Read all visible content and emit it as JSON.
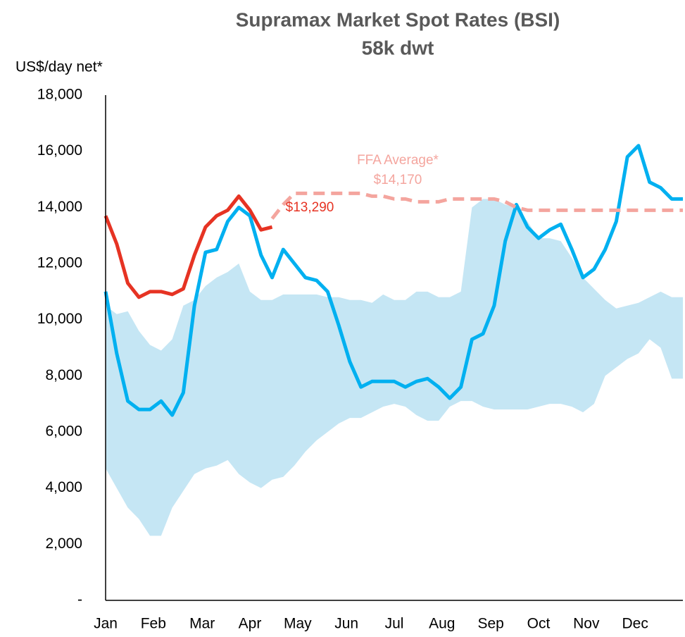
{
  "chart_data": {
    "type": "line",
    "title": "Supramax Market Spot Rates (BSI)",
    "subtitle": "58k dwt",
    "y_label": "US$/day net*",
    "annotations": [
      {
        "text": "FFA Average*",
        "color": "#f4a59e"
      },
      {
        "text": "$14,170",
        "color": "#f4a59e"
      },
      {
        "text": "$13,290",
        "color": "#e63323"
      }
    ],
    "x": [
      0,
      1,
      2,
      3,
      4,
      5,
      6,
      7,
      8,
      9,
      10,
      11,
      12,
      13,
      14,
      15,
      16,
      17,
      18,
      19,
      20,
      21,
      22,
      23,
      24,
      25,
      26,
      27,
      28,
      29,
      30,
      31,
      32,
      33,
      34,
      35,
      36,
      37,
      38,
      39,
      40,
      41,
      42,
      43,
      44,
      45,
      46,
      47,
      48,
      49,
      50,
      51,
      52
    ],
    "xlim": [
      0,
      52
    ],
    "xticks": [
      {
        "value": 0,
        "label": "Jan"
      },
      {
        "value": 4.3,
        "label": "Feb"
      },
      {
        "value": 8.7,
        "label": "Mar"
      },
      {
        "value": 13,
        "label": "Apr"
      },
      {
        "value": 17.3,
        "label": "May"
      },
      {
        "value": 21.7,
        "label": "Jun"
      },
      {
        "value": 26,
        "label": "Jul"
      },
      {
        "value": 30.3,
        "label": "Aug"
      },
      {
        "value": 34.7,
        "label": "Sep"
      },
      {
        "value": 39,
        "label": "Oct"
      },
      {
        "value": 43.3,
        "label": "Nov"
      },
      {
        "value": 47.7,
        "label": "Dec"
      }
    ],
    "ylim": [
      0,
      18000
    ],
    "yticks": [
      {
        "value": 0,
        "label": "-"
      },
      {
        "value": 2000,
        "label": "2,000"
      },
      {
        "value": 4000,
        "label": "4,000"
      },
      {
        "value": 6000,
        "label": "6,000"
      },
      {
        "value": 8000,
        "label": "8,000"
      },
      {
        "value": 10000,
        "label": "10,000"
      },
      {
        "value": 12000,
        "label": "12,000"
      },
      {
        "value": 14000,
        "label": "14,000"
      },
      {
        "value": 16000,
        "label": "16,000"
      },
      {
        "value": 18000,
        "label": "18,000"
      }
    ],
    "grid": false,
    "band": {
      "color": "#c5e6f4",
      "upper": [
        10500,
        10200,
        10300,
        9600,
        9100,
        8900,
        9300,
        10500,
        10700,
        11200,
        11500,
        11700,
        12000,
        11000,
        10700,
        10700,
        10900,
        10900,
        10900,
        10900,
        10800,
        10800,
        10700,
        10700,
        10600,
        10900,
        10700,
        10700,
        11000,
        11000,
        10800,
        10800,
        11000,
        14000,
        14300,
        14300,
        14100,
        14000,
        13500,
        12900,
        12900,
        12800,
        12200,
        11500,
        11100,
        10700,
        10400,
        10500,
        10600,
        10800,
        11000,
        10800,
        10800
      ],
      "lower": [
        4700,
        4000,
        3300,
        2900,
        2300,
        2300,
        3300,
        3900,
        4500,
        4700,
        4800,
        5000,
        4500,
        4200,
        4000,
        4300,
        4400,
        4800,
        5300,
        5700,
        6000,
        6300,
        6500,
        6500,
        6700,
        6900,
        7000,
        6900,
        6600,
        6400,
        6400,
        6900,
        7100,
        7100,
        6900,
        6800,
        6800,
        6800,
        6800,
        6900,
        7000,
        7000,
        6900,
        6700,
        7000,
        8000,
        8300,
        8600,
        8800,
        9300,
        9000,
        7900,
        7900
      ]
    },
    "series": [
      {
        "color": "#00b0f0",
        "dashed": false,
        "values": [
          11000,
          8800,
          7100,
          6800,
          6800,
          7100,
          6600,
          7400,
          10500,
          12400,
          12500,
          13500,
          14000,
          13700,
          12300,
          11500,
          12500,
          12000,
          11500,
          11400,
          11000,
          9800,
          8500,
          7600,
          7800,
          7800,
          7800,
          7600,
          7800,
          7900,
          7600,
          7200,
          7600,
          9300,
          9500,
          10500,
          12800,
          14100,
          13300,
          12900,
          13200,
          13400,
          12500,
          11500,
          11800,
          12500,
          13500,
          15800,
          16200,
          14900,
          14700,
          14300,
          14300
        ]
      },
      {
        "color": "#f4a59e",
        "dashed": true,
        "values": [
          null,
          null,
          null,
          null,
          null,
          null,
          null,
          null,
          null,
          null,
          null,
          null,
          null,
          null,
          null,
          13600,
          14100,
          14500,
          14500,
          14500,
          14500,
          14500,
          14500,
          14500,
          14400,
          14400,
          14300,
          14300,
          14200,
          14200,
          14200,
          14300,
          14300,
          14300,
          14300,
          14300,
          14200,
          14000,
          13900,
          13900,
          13900,
          13900,
          13900,
          13900,
          13900,
          13900,
          13900,
          13900,
          13900,
          13900,
          13900,
          13900,
          13900
        ]
      },
      {
        "color": "#e63323",
        "dashed": false,
        "values": [
          13700,
          12700,
          11300,
          10800,
          11000,
          11000,
          10900,
          11100,
          12300,
          13300,
          13700,
          13900,
          14400,
          13900,
          13200,
          13300,
          null,
          null,
          null,
          null,
          null,
          null,
          null,
          null,
          null,
          null,
          null,
          null,
          null,
          null,
          null,
          null,
          null,
          null,
          null,
          null,
          null,
          null,
          null,
          null,
          null,
          null,
          null,
          null,
          null,
          null,
          null,
          null,
          null,
          null,
          null,
          null,
          null
        ]
      }
    ]
  }
}
